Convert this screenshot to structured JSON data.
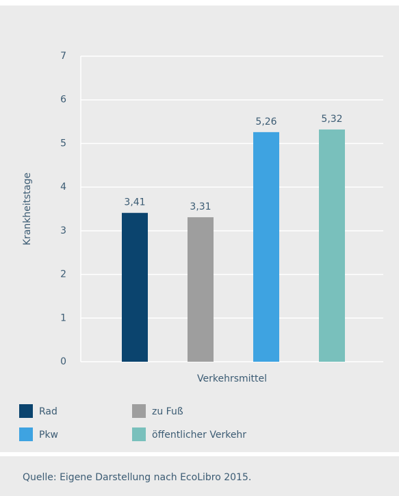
{
  "chart_data": {
    "type": "bar",
    "categories": [
      "Rad",
      "zu Fuß",
      "Pkw",
      "öffentlicher Verkehr"
    ],
    "values": [
      3.41,
      3.31,
      5.26,
      5.32
    ],
    "value_labels": [
      "3,41",
      "3,31",
      "5,26",
      "5,32"
    ],
    "colors": [
      "#0b446e",
      "#9e9e9e",
      "#3ea3e1",
      "#79c0bc"
    ],
    "xlabel": "Verkehrsmittel",
    "ylabel": "Krankheitstage",
    "ylim": [
      0,
      7
    ],
    "yticks": [
      0,
      1,
      2,
      3,
      4,
      5,
      6,
      7
    ],
    "grid": true
  },
  "source": "Quelle: Eigene Darstellung nach EcoLibro 2015."
}
